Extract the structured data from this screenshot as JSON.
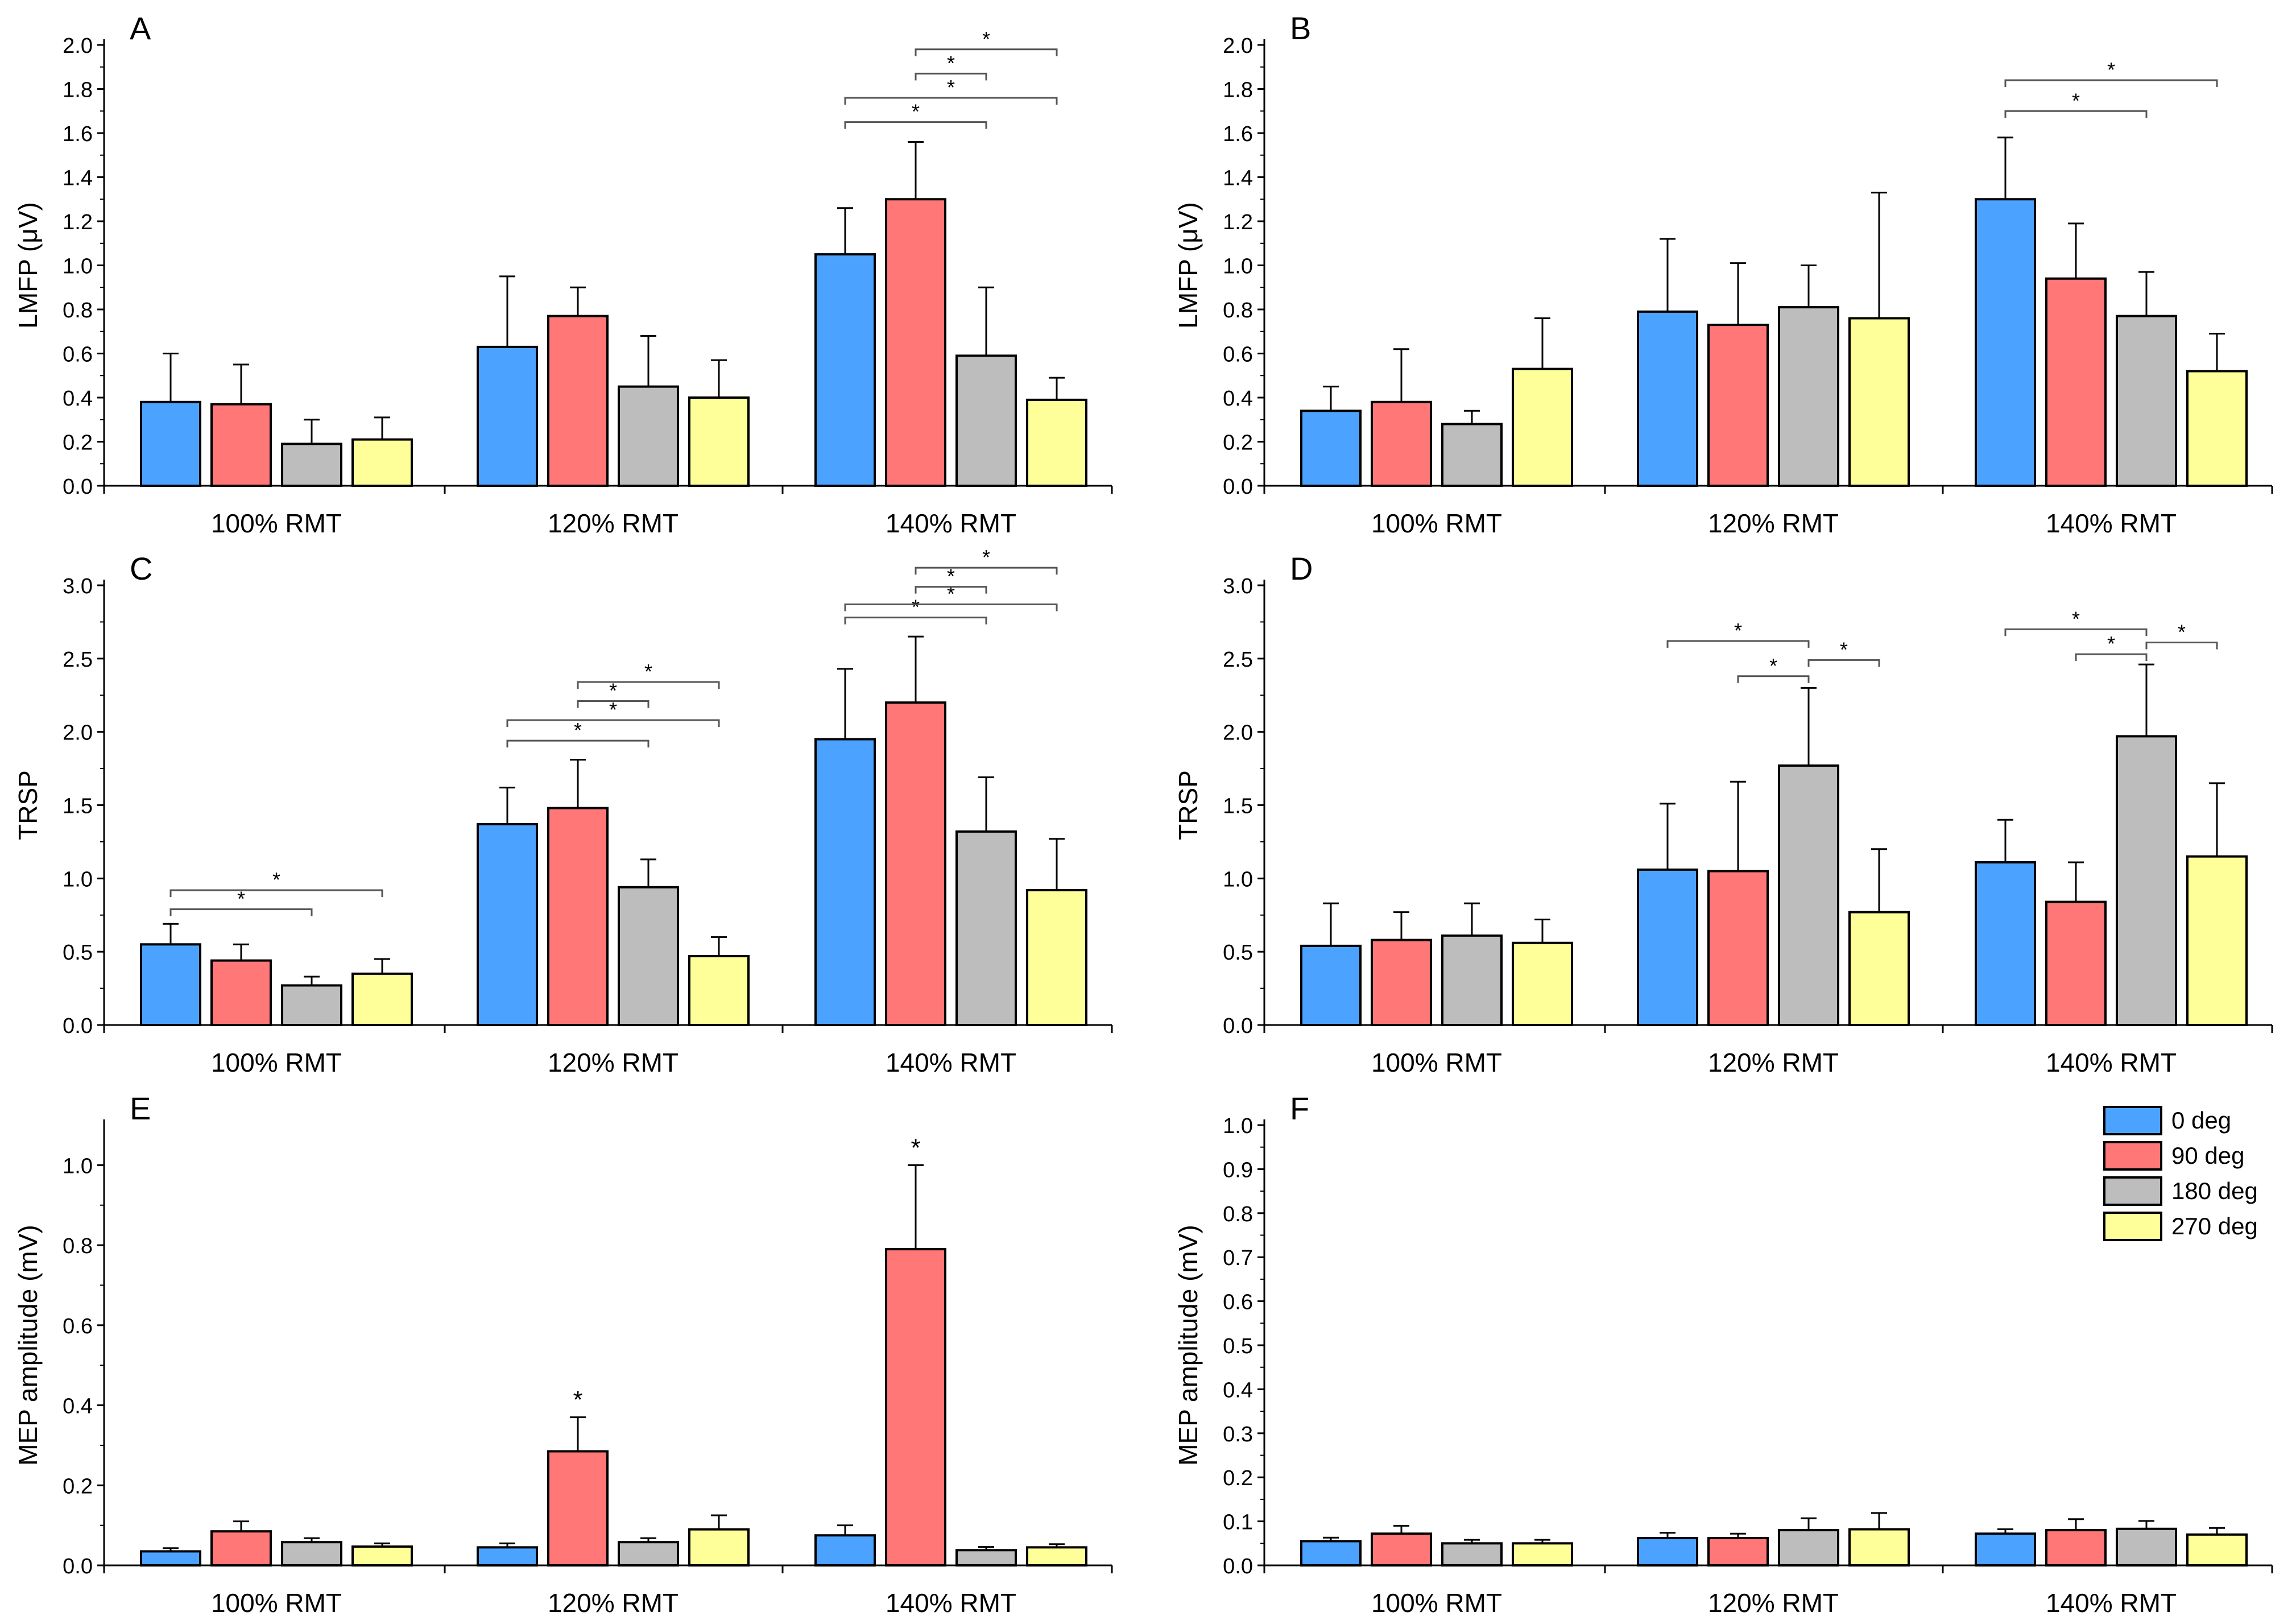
{
  "colors": {
    "c0": "#4ba3ff",
    "c90": "#ff7777",
    "c180": "#bdbdbd",
    "c270": "#ffff99"
  },
  "chart_data": [
    {
      "panel": "A",
      "type": "bar",
      "ylabel": "LMFP (μV)",
      "ylim": [
        0,
        2.0
      ],
      "yticks": [
        "0.0",
        "0.2",
        "0.4",
        "0.6",
        "0.8",
        "1.0",
        "1.2",
        "1.4",
        "1.6",
        "1.8",
        "2.0"
      ],
      "categories": [
        "100% RMT",
        "120% RMT",
        "140% RMT"
      ],
      "series": [
        {
          "name": "0 deg",
          "values": [
            0.38,
            0.63,
            1.05
          ],
          "errors": [
            0.22,
            0.32,
            0.21
          ]
        },
        {
          "name": "90 deg",
          "values": [
            0.37,
            0.77,
            1.3
          ],
          "errors": [
            0.18,
            0.13,
            0.26
          ]
        },
        {
          "name": "180 deg",
          "values": [
            0.19,
            0.45,
            0.59
          ],
          "errors": [
            0.11,
            0.23,
            0.31
          ]
        },
        {
          "name": "270 deg",
          "values": [
            0.21,
            0.4,
            0.39
          ],
          "errors": [
            0.1,
            0.17,
            0.1
          ]
        }
      ],
      "annotations": [
        {
          "label": "*",
          "group": 2,
          "from": 0,
          "to": 2,
          "level": 1.65
        },
        {
          "label": "*",
          "group": 2,
          "from": 0,
          "to": 3,
          "level": 1.76
        },
        {
          "label": "*",
          "group": 2,
          "from": 1,
          "to": 2,
          "level": 1.87
        },
        {
          "label": "*",
          "group": 2,
          "from": 1,
          "to": 3,
          "level": 1.98
        }
      ]
    },
    {
      "panel": "B",
      "type": "bar",
      "ylabel": "LMFP (μV)",
      "ylim": [
        0,
        2.0
      ],
      "yticks": [
        "0.0",
        "0.2",
        "0.4",
        "0.6",
        "0.8",
        "1.0",
        "1.2",
        "1.4",
        "1.6",
        "1.8",
        "2.0"
      ],
      "categories": [
        "100% RMT",
        "120% RMT",
        "140% RMT"
      ],
      "series": [
        {
          "name": "0 deg",
          "values": [
            0.34,
            0.79,
            1.3
          ],
          "errors": [
            0.11,
            0.33,
            0.28
          ]
        },
        {
          "name": "90 deg",
          "values": [
            0.38,
            0.73,
            0.94
          ],
          "errors": [
            0.24,
            0.28,
            0.25
          ]
        },
        {
          "name": "180 deg",
          "values": [
            0.28,
            0.81,
            0.77
          ],
          "errors": [
            0.06,
            0.19,
            0.2
          ]
        },
        {
          "name": "270 deg",
          "values": [
            0.53,
            0.76,
            0.52
          ],
          "errors": [
            0.23,
            0.57,
            0.17
          ]
        }
      ],
      "annotations": [
        {
          "label": "*",
          "group": 2,
          "from": 0,
          "to": 2,
          "level": 1.7
        },
        {
          "label": "*",
          "group": 2,
          "from": 0,
          "to": 3,
          "level": 1.84
        }
      ]
    },
    {
      "panel": "C",
      "type": "bar",
      "ylabel": "TRSP",
      "ylim": [
        0,
        3.0
      ],
      "yticks": [
        "0.0",
        "0.5",
        "1.0",
        "1.5",
        "2.0",
        "2.5",
        "3.0"
      ],
      "categories": [
        "100% RMT",
        "120% RMT",
        "140% RMT"
      ],
      "series": [
        {
          "name": "0 deg",
          "values": [
            0.55,
            1.37,
            1.95
          ],
          "errors": [
            0.14,
            0.25,
            0.48
          ]
        },
        {
          "name": "90 deg",
          "values": [
            0.44,
            1.48,
            2.2
          ],
          "errors": [
            0.11,
            0.33,
            0.45
          ]
        },
        {
          "name": "180 deg",
          "values": [
            0.27,
            0.94,
            1.32
          ],
          "errors": [
            0.06,
            0.19,
            0.37
          ]
        },
        {
          "name": "270 deg",
          "values": [
            0.35,
            0.47,
            0.92
          ],
          "errors": [
            0.1,
            0.13,
            0.35
          ]
        }
      ],
      "annotations": [
        {
          "label": "*",
          "group": 0,
          "from": 0,
          "to": 2,
          "level": 0.79
        },
        {
          "label": "*",
          "group": 0,
          "from": 0,
          "to": 3,
          "level": 0.92
        },
        {
          "label": "*",
          "group": 1,
          "from": 0,
          "to": 2,
          "level": 1.94
        },
        {
          "label": "*",
          "group": 1,
          "from": 0,
          "to": 3,
          "level": 2.08
        },
        {
          "label": "*",
          "group": 1,
          "from": 1,
          "to": 2,
          "level": 2.21
        },
        {
          "label": "*",
          "group": 1,
          "from": 1,
          "to": 3,
          "level": 2.34
        },
        {
          "label": "*",
          "group": 2,
          "from": 0,
          "to": 2,
          "level": 2.78
        },
        {
          "label": "*",
          "group": 2,
          "from": 0,
          "to": 3,
          "level": 2.87
        },
        {
          "label": "*",
          "group": 2,
          "from": 1,
          "to": 2,
          "level": 2.99
        },
        {
          "label": "*",
          "group": 2,
          "from": 1,
          "to": 3,
          "level": 3.12
        }
      ]
    },
    {
      "panel": "D",
      "type": "bar",
      "ylabel": "TRSP",
      "ylim": [
        0,
        3.0
      ],
      "yticks": [
        "0.0",
        "0.5",
        "1.0",
        "1.5",
        "2.0",
        "2.5",
        "3.0"
      ],
      "categories": [
        "100% RMT",
        "120% RMT",
        "140% RMT"
      ],
      "series": [
        {
          "name": "0 deg",
          "values": [
            0.54,
            1.06,
            1.11
          ],
          "errors": [
            0.29,
            0.45,
            0.29
          ]
        },
        {
          "name": "90 deg",
          "values": [
            0.58,
            1.05,
            0.84
          ],
          "errors": [
            0.19,
            0.61,
            0.27
          ]
        },
        {
          "name": "180 deg",
          "values": [
            0.61,
            1.77,
            1.97
          ],
          "errors": [
            0.22,
            0.53,
            0.49
          ]
        },
        {
          "name": "270 deg",
          "values": [
            0.56,
            0.77,
            1.15
          ],
          "errors": [
            0.16,
            0.43,
            0.5
          ]
        }
      ],
      "annotations": [
        {
          "label": "*",
          "group": 1,
          "from": 0,
          "to": 2,
          "level": 2.62
        },
        {
          "label": "*",
          "group": 1,
          "from": 1,
          "to": 2,
          "level": 2.38
        },
        {
          "label": "*",
          "group": 1,
          "from": 2,
          "to": 3,
          "level": 2.49
        },
        {
          "label": "*",
          "group": 2,
          "from": 0,
          "to": 2,
          "level": 2.7
        },
        {
          "label": "*",
          "group": 2,
          "from": 1,
          "to": 2,
          "level": 2.53
        },
        {
          "label": "*",
          "group": 2,
          "from": 2,
          "to": 3,
          "level": 2.61
        }
      ]
    },
    {
      "panel": "E",
      "type": "bar",
      "ylabel": "MEP amplitude (mV)",
      "ylim": [
        0,
        1.1
      ],
      "yticks": [
        "0.0",
        "0.2",
        "0.4",
        "0.6",
        "0.8",
        "1.0"
      ],
      "categories": [
        "100% RMT",
        "120% RMT",
        "140% RMT"
      ],
      "series": [
        {
          "name": "0 deg",
          "values": [
            0.035,
            0.045,
            0.075
          ],
          "errors": [
            0.008,
            0.01,
            0.025
          ]
        },
        {
          "name": "90 deg",
          "values": [
            0.085,
            0.285,
            0.79
          ],
          "errors": [
            0.025,
            0.085,
            0.21
          ]
        },
        {
          "name": "180 deg",
          "values": [
            0.058,
            0.058,
            0.038
          ],
          "errors": [
            0.01,
            0.01,
            0.008
          ]
        },
        {
          "name": "270 deg",
          "values": [
            0.047,
            0.09,
            0.045
          ],
          "errors": [
            0.008,
            0.035,
            0.008
          ]
        }
      ],
      "annotations": [
        {
          "label": "*",
          "group": 1,
          "bar": 1
        },
        {
          "label": "*",
          "group": 2,
          "bar": 1
        }
      ]
    },
    {
      "panel": "F",
      "type": "bar",
      "ylabel": "MEP amplitude (mV)",
      "ylim": [
        0,
        1.0
      ],
      "yticks": [
        "0.0",
        "0.1",
        "0.2",
        "0.3",
        "0.4",
        "0.5",
        "0.6",
        "0.7",
        "0.8",
        "0.9",
        "1.0"
      ],
      "categories": [
        "100% RMT",
        "120% RMT",
        "140% RMT"
      ],
      "series": [
        {
          "name": "0 deg",
          "values": [
            0.055,
            0.062,
            0.072
          ],
          "errors": [
            0.008,
            0.012,
            0.01
          ]
        },
        {
          "name": "90 deg",
          "values": [
            0.072,
            0.062,
            0.08
          ],
          "errors": [
            0.018,
            0.01,
            0.025
          ]
        },
        {
          "name": "180 deg",
          "values": [
            0.05,
            0.08,
            0.083
          ],
          "errors": [
            0.008,
            0.027,
            0.018
          ]
        },
        {
          "name": "270 deg",
          "values": [
            0.05,
            0.082,
            0.07
          ],
          "errors": [
            0.008,
            0.037,
            0.015
          ]
        }
      ],
      "annotations": [],
      "legend": [
        "0 deg",
        "90 deg",
        "180 deg",
        "270 deg"
      ]
    }
  ]
}
